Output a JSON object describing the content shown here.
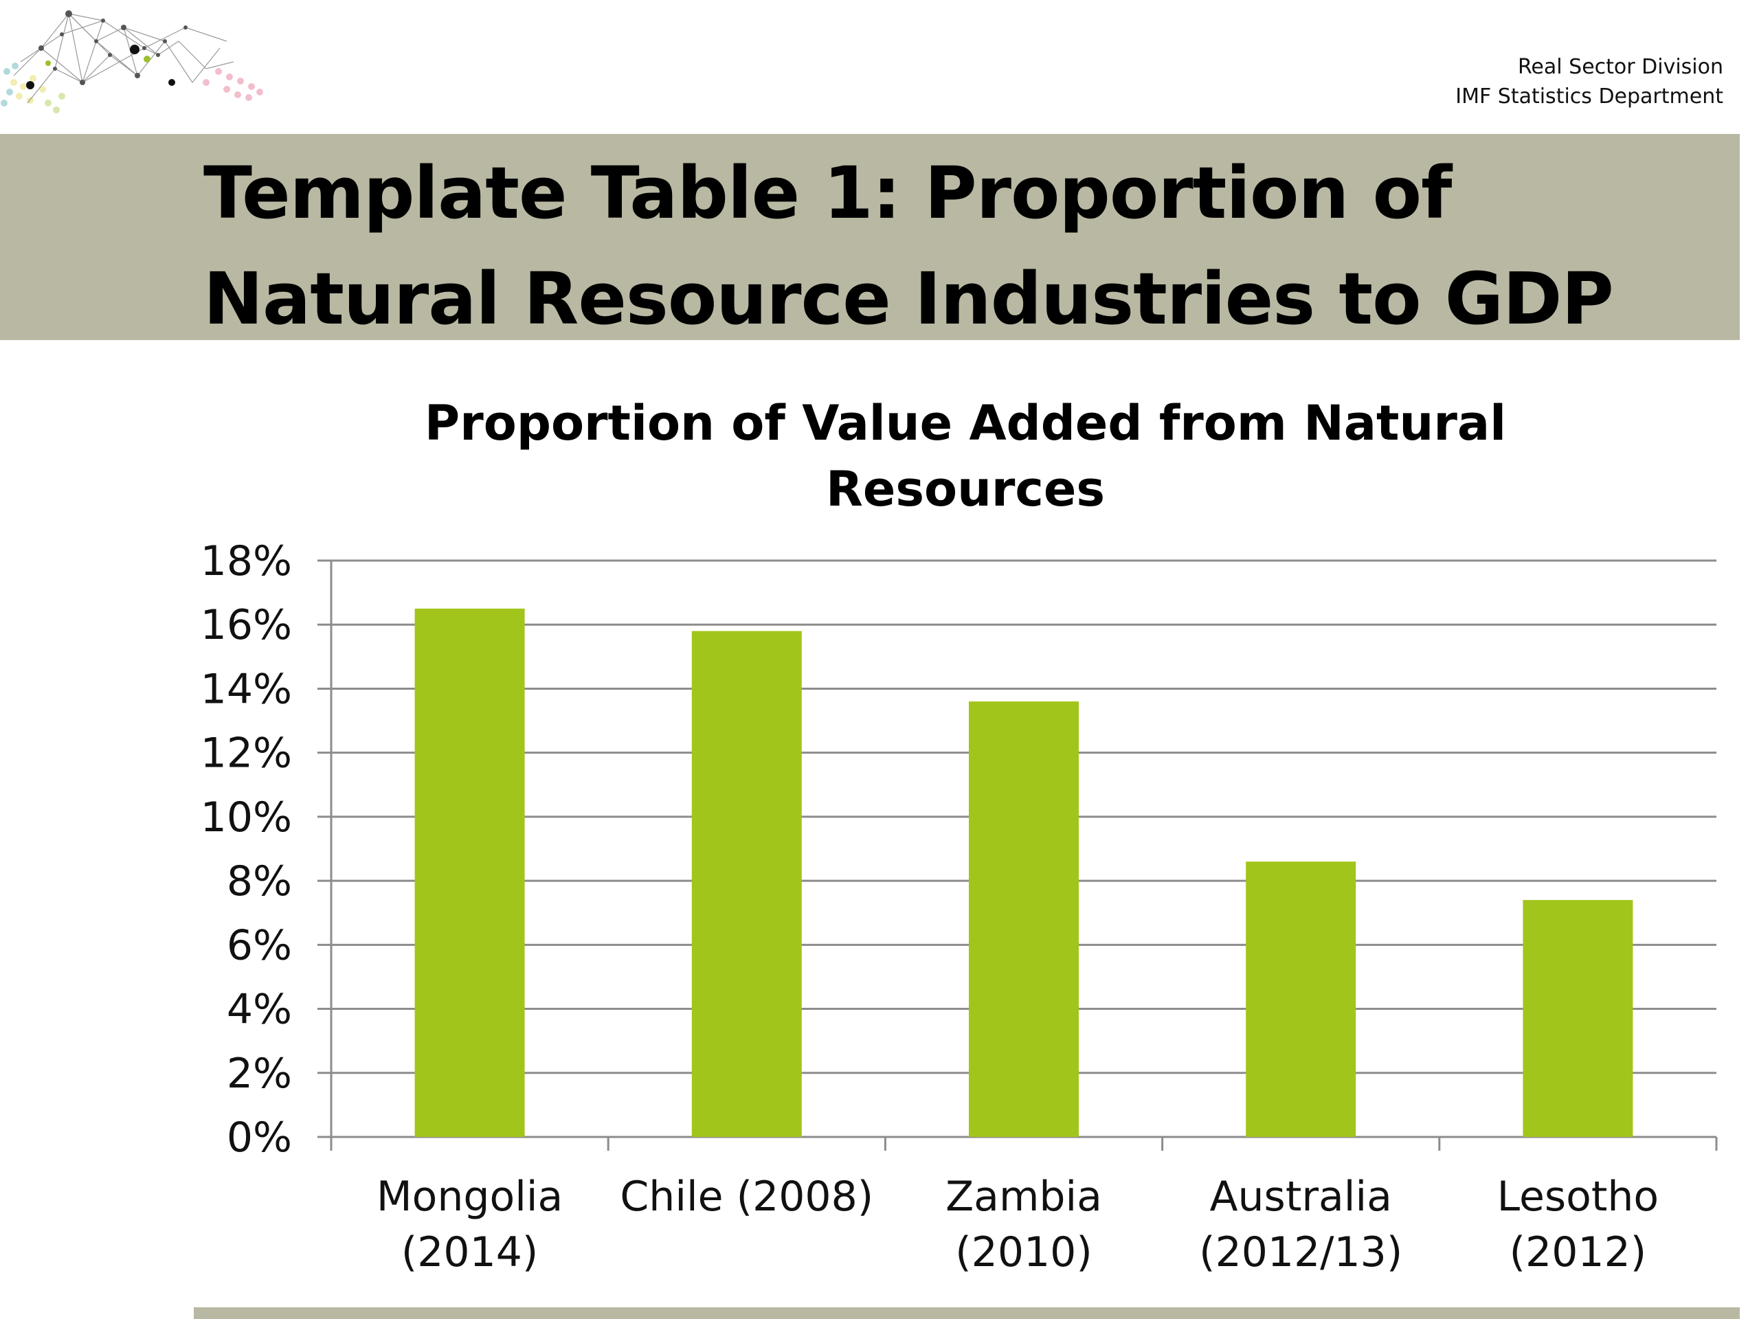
{
  "header": {
    "org_line1": "Real Sector Division",
    "org_line2": "IMF Statistics Department",
    "title": "Template Table 1: Proportion of Natural Resource Industries to GDP"
  },
  "logo": {
    "icon": "network-dots-logo-icon"
  },
  "colors": {
    "band": "#b9b8a2",
    "bar": "#a2c51b",
    "grid": "#8c8c8c"
  },
  "chart_data": {
    "type": "bar",
    "title_lines": [
      "Proportion of Value Added from Natural",
      "Resources"
    ],
    "categories": [
      [
        "Mongolia",
        "(2014)"
      ],
      [
        "Chile (2008)"
      ],
      [
        "Zambia",
        "(2010)"
      ],
      [
        "Australia",
        "(2012/13)"
      ],
      [
        "Lesotho",
        "(2012)"
      ]
    ],
    "values": [
      16.5,
      15.8,
      13.6,
      8.6,
      7.4
    ],
    "y_ticks": [
      "0%",
      "2%",
      "4%",
      "6%",
      "8%",
      "10%",
      "12%",
      "14%",
      "16%",
      "18%"
    ],
    "ylim": [
      0,
      18
    ],
    "grid": true,
    "legend": "none"
  }
}
